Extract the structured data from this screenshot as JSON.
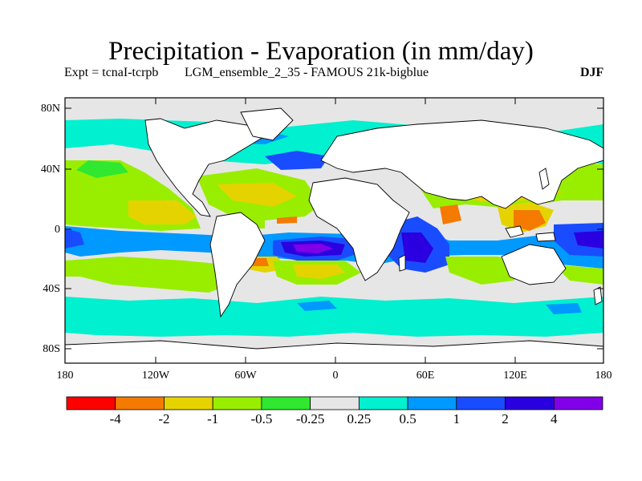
{
  "title": "Precipitation - Evaporation (in mm/day)",
  "subtitle_left": "Expt = tcnaI-tcrpb",
  "subtitle_center": "LGM_ensemble_2_35 - FAMOUS 21k-bigblue",
  "season": "DJF",
  "lat_labels": [
    "80N",
    "40N",
    "0",
    "40S",
    "80S"
  ],
  "lon_labels": [
    "180",
    "120W",
    "60W",
    "0",
    "60E",
    "120E",
    "180"
  ],
  "colorbar": {
    "colors": [
      "#ff0000",
      "#f47a00",
      "#e5d300",
      "#99ee00",
      "#2fe82f",
      "#e6e6e6",
      "#00f0d0",
      "#0099ff",
      "#1a4cff",
      "#2b00e0",
      "#8000e8"
    ],
    "labels": [
      "-4",
      "-2",
      "-1",
      "-0.5",
      "-0.25",
      "0.25",
      "0.5",
      "1",
      "2",
      "4"
    ]
  },
  "map_colors": {
    "land": "#ffffff",
    "ocean_neutral": "#e6e6e6",
    "coast": "#000000"
  }
}
